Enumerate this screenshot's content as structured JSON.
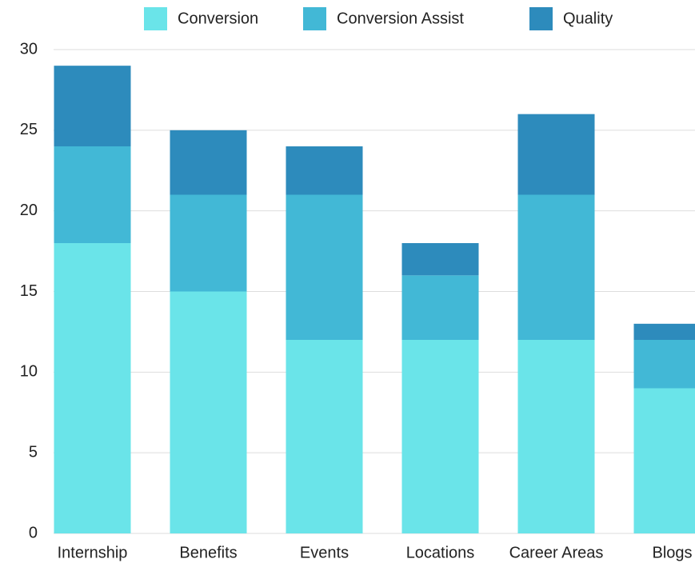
{
  "chart_data": {
    "type": "stacked_bar",
    "categories": [
      "Internship",
      "Benefits",
      "Events",
      "Locations",
      "Career Areas",
      "Blogs"
    ],
    "series": [
      {
        "name": "Conversion",
        "color": "#6ae4e9",
        "values": [
          18,
          15,
          12,
          12,
          12,
          9
        ]
      },
      {
        "name": "Conversion Assist",
        "color": "#42b8d6",
        "values": [
          6,
          6,
          9,
          4,
          9,
          3
        ]
      },
      {
        "name": "Quality",
        "color": "#2d8bbc",
        "values": [
          5,
          4,
          3,
          2,
          5,
          1
        ]
      }
    ],
    "ylim": [
      0,
      30
    ],
    "yticks": [
      0,
      5,
      10,
      15,
      20,
      25,
      30
    ],
    "grid": true,
    "legend": "top"
  }
}
